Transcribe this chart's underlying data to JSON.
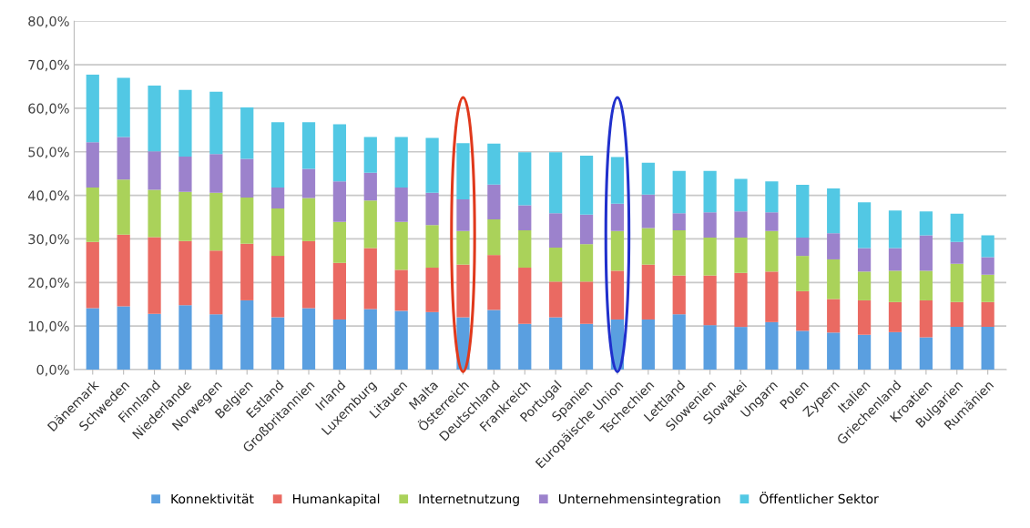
{
  "chart_data": {
    "type": "bar",
    "stacked": true,
    "categories": [
      "Dänemark",
      "Schweden",
      "Finnland",
      "Niederlande",
      "Norwegen",
      "Belgien",
      "Estland",
      "Großbritannien",
      "Irland",
      "Luxemburg",
      "Litauen",
      "Malta",
      "Österreich",
      "Deutschland",
      "Frankreich",
      "Portugal",
      "Spanien",
      "Europäische Union",
      "Tschechien",
      "Lettland",
      "Slowenien",
      "Slowakei",
      "Ungarn",
      "Polen",
      "Zypern",
      "Italien",
      "Griechenland",
      "Kroatien",
      "Bulgarien",
      "Rumänien"
    ],
    "series": [
      {
        "name": "Konnektivität",
        "color": "#5a9fe0",
        "values": [
          14.1,
          14.5,
          12.8,
          14.8,
          12.7,
          15.9,
          12.0,
          14.1,
          11.5,
          13.9,
          13.5,
          13.2,
          12.0,
          13.7,
          10.5,
          12.0,
          10.5,
          11.5,
          11.5,
          12.7,
          10.2,
          9.8,
          10.9,
          8.9,
          8.5,
          8.0,
          8.6,
          7.4,
          9.8,
          9.8
        ]
      },
      {
        "name": "Humankapital",
        "color": "#ea6a62",
        "values": [
          15.2,
          16.5,
          17.6,
          14.7,
          14.6,
          13.0,
          14.1,
          15.4,
          13.0,
          14.0,
          9.4,
          10.2,
          12.1,
          12.6,
          12.9,
          8.2,
          9.7,
          11.2,
          12.6,
          8.9,
          11.4,
          12.4,
          11.6,
          9.1,
          7.7,
          7.9,
          6.9,
          8.5,
          5.7,
          5.7
        ]
      },
      {
        "name": "Internetnutzung",
        "color": "#aad25a",
        "values": [
          12.5,
          12.6,
          10.9,
          11.3,
          13.3,
          10.6,
          10.9,
          9.9,
          9.4,
          10.9,
          11.0,
          9.8,
          7.7,
          8.2,
          8.6,
          7.8,
          8.6,
          9.1,
          8.4,
          10.4,
          8.7,
          8.1,
          9.3,
          8.1,
          9.1,
          6.6,
          7.2,
          6.8,
          8.8,
          6.3
        ]
      },
      {
        "name": "Unternehmensintegration",
        "color": "#9c82cc",
        "values": [
          10.4,
          9.8,
          8.8,
          8.1,
          8.9,
          8.9,
          4.8,
          6.7,
          9.3,
          6.4,
          7.9,
          7.4,
          7.3,
          8.0,
          5.7,
          7.9,
          6.8,
          6.3,
          7.7,
          3.9,
          5.8,
          6.0,
          4.3,
          4.2,
          6.0,
          5.4,
          5.2,
          8.1,
          5.0,
          4.0
        ]
      },
      {
        "name": "Öffentlicher Sektor",
        "color": "#52c8e4",
        "values": [
          15.5,
          13.6,
          15.1,
          15.3,
          14.3,
          11.8,
          15.0,
          10.7,
          13.1,
          8.2,
          11.6,
          12.6,
          12.9,
          9.4,
          12.2,
          14.0,
          13.5,
          10.7,
          7.3,
          9.7,
          9.5,
          7.5,
          7.1,
          12.1,
          10.3,
          10.5,
          8.6,
          5.5,
          6.5,
          5.0
        ]
      }
    ],
    "ylim": [
      0,
      80
    ],
    "yticks": [
      {
        "value": 0,
        "label": "0,0%"
      },
      {
        "value": 10,
        "label": "10,0%"
      },
      {
        "value": 20,
        "label": "20,0%"
      },
      {
        "value": 30,
        "label": "30,0%"
      },
      {
        "value": 40,
        "label": "40,0%"
      },
      {
        "value": 50,
        "label": "50,0%"
      },
      {
        "value": 60,
        "label": "60,0%"
      },
      {
        "value": 70,
        "label": "70,0%"
      },
      {
        "value": 80,
        "label": "80,0%"
      }
    ],
    "grid": "y",
    "legend": "bottom"
  }
}
